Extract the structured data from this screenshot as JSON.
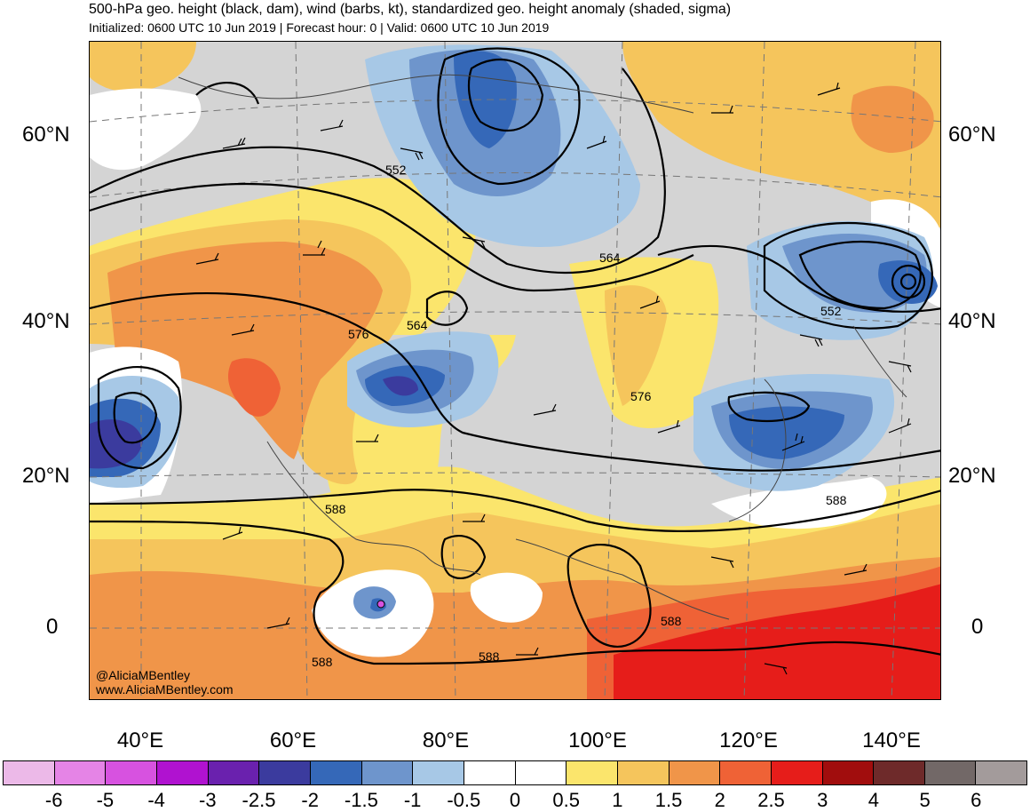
{
  "header": {
    "title": "500-hPa geo. height (black, dam), wind (barbs, kt), standardized geo. height anomaly (shaded, sigma)",
    "subtitle": "Initialized: 0600 UTC 10 Jun 2019 | Forecast hour: 0 | Valid: 0600 UTC 10 Jun 2019"
  },
  "axes": {
    "lat_labels": [
      "60°N",
      "40°N",
      "20°N",
      "0"
    ],
    "lon_labels": [
      "40°E",
      "60°E",
      "80°E",
      "100°E",
      "120°E",
      "140°E"
    ]
  },
  "contour_labels": [
    "552",
    "564",
    "564",
    "576",
    "576",
    "552",
    "588",
    "588",
    "588",
    "588",
    "588"
  ],
  "credit": {
    "handle": "@AliciaMBentley",
    "site": "www.AliciaMBentley.com"
  },
  "colorbar": {
    "colors": [
      "#ecb9e8",
      "#e584e6",
      "#d752e0",
      "#b012d0",
      "#6a21ae",
      "#3b3b9e",
      "#3568b8",
      "#6e95cc",
      "#a7c8e6",
      "#ffffff",
      "#ffffff",
      "#fbe56c",
      "#f5c55c",
      "#f09549",
      "#ef6236",
      "#e61d1a",
      "#a10d0d",
      "#6e2a2a",
      "#726867",
      "#a39b9b"
    ],
    "labels": [
      "-6",
      "-5",
      "-4",
      "-3",
      "-2.5",
      "-2",
      "-1.5",
      "-1",
      "-0.5",
      "0",
      "0.5",
      "1",
      "1.5",
      "2",
      "2.5",
      "3",
      "4",
      "5",
      "6"
    ]
  }
}
